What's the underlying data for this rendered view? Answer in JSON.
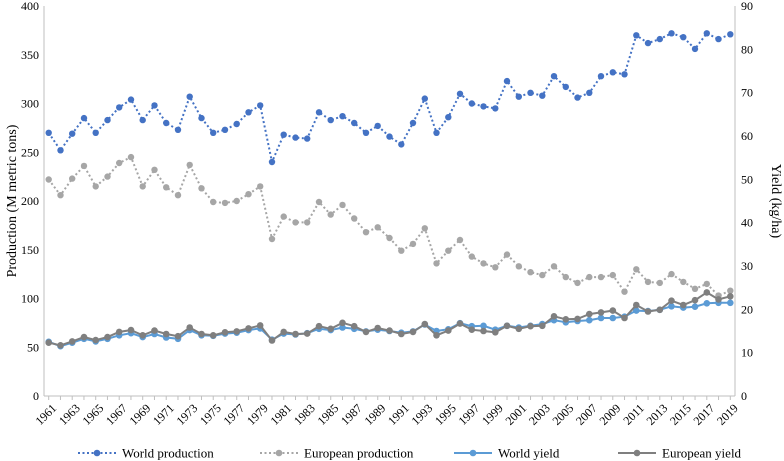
{
  "chart_data": {
    "type": "line",
    "title": "",
    "ylabel_left": "Production (M metric tons)",
    "ylabel_right": "Yield (kg/ha)",
    "ylim_left": [
      0,
      400
    ],
    "ylim_right": [
      0,
      90
    ],
    "yticks_left": [
      0,
      50,
      100,
      150,
      200,
      250,
      300,
      350,
      400
    ],
    "yticks_right": [
      0,
      10,
      20,
      30,
      40,
      50,
      60,
      70,
      80,
      90
    ],
    "x": [
      1961,
      1962,
      1963,
      1964,
      1965,
      1966,
      1967,
      1968,
      1969,
      1970,
      1971,
      1972,
      1973,
      1974,
      1975,
      1976,
      1977,
      1978,
      1979,
      1980,
      1981,
      1982,
      1983,
      1984,
      1985,
      1986,
      1987,
      1988,
      1989,
      1990,
      1991,
      1992,
      1993,
      1994,
      1995,
      1996,
      1997,
      1998,
      1999,
      2000,
      2001,
      2002,
      2003,
      2004,
      2005,
      2006,
      2007,
      2008,
      2009,
      2010,
      2011,
      2012,
      2013,
      2014,
      2015,
      2016,
      2017,
      2018,
      2019
    ],
    "xtick_labels": [
      "1961",
      "1963",
      "1965",
      "1967",
      "1969",
      "1971",
      "1973",
      "1975",
      "1977",
      "1979",
      "1981",
      "1983",
      "1985",
      "1987",
      "1989",
      "1991",
      "1993",
      "1995",
      "1997",
      "1999",
      "2001",
      "2003",
      "2005",
      "2007",
      "2009",
      "2011",
      "2013",
      "2015",
      "2017",
      "2019"
    ],
    "grid": false,
    "legend_position": "bottom",
    "series": [
      {
        "name": "World production",
        "axis": "left",
        "color": "#4472c4",
        "style": "dotted",
        "values": [
          270,
          252,
          269,
          285,
          270,
          283,
          296,
          304,
          283,
          298,
          280,
          273,
          307,
          285,
          270,
          273,
          279,
          291,
          298,
          240,
          268,
          265,
          264,
          291,
          283,
          287,
          280,
          270,
          277,
          266,
          258,
          280,
          305,
          270,
          286,
          310,
          300,
          297,
          295,
          323,
          307,
          311,
          308,
          328,
          317,
          306,
          311,
          328,
          332,
          330,
          370,
          362,
          366,
          372,
          368,
          356,
          372,
          366,
          371
        ]
      },
      {
        "name": "European production",
        "axis": "left",
        "color": "#a6a6a6",
        "style": "dotted",
        "values": [
          222,
          206,
          223,
          236,
          215,
          225,
          239,
          245,
          215,
          232,
          214,
          206,
          237,
          213,
          199,
          198,
          200,
          207,
          215,
          161,
          184,
          178,
          178,
          199,
          186,
          196,
          182,
          168,
          173,
          162,
          149,
          156,
          172,
          136,
          149,
          160,
          143,
          136,
          132,
          145,
          133,
          127,
          124,
          133,
          122,
          116,
          122,
          122,
          124,
          107,
          130,
          117,
          116,
          125,
          117,
          110,
          115,
          103,
          108
        ]
      },
      {
        "name": "World yield",
        "axis": "right",
        "color": "#5b9bd5",
        "style": "solid",
        "values": [
          12.5,
          11.5,
          12.3,
          13.2,
          12.6,
          13.2,
          14.0,
          14.5,
          13.6,
          14.3,
          13.5,
          13.2,
          15.2,
          14.0,
          13.9,
          14.4,
          14.6,
          15.2,
          15.6,
          13.0,
          14.4,
          14.2,
          14.5,
          15.5,
          15.2,
          15.8,
          15.5,
          14.9,
          15.3,
          15.0,
          14.6,
          14.9,
          16.5,
          15.0,
          15.4,
          16.8,
          16.1,
          16.2,
          15.3,
          16.2,
          15.8,
          16.2,
          16.6,
          17.5,
          17.0,
          17.3,
          17.5,
          18.0,
          18.0,
          18.3,
          19.7,
          19.6,
          19.9,
          20.7,
          20.4,
          20.6,
          21.4,
          21.5,
          21.5
        ]
      },
      {
        "name": "European yield",
        "axis": "right",
        "color": "#7f7f7f",
        "style": "solid",
        "values": [
          12.3,
          11.7,
          12.6,
          13.6,
          12.9,
          13.6,
          14.8,
          15.2,
          14.0,
          15.1,
          14.3,
          13.8,
          15.8,
          14.3,
          14.0,
          14.7,
          14.9,
          15.6,
          16.3,
          12.8,
          14.8,
          14.3,
          14.4,
          16.1,
          15.5,
          16.9,
          16.1,
          14.8,
          15.7,
          15.1,
          14.3,
          14.8,
          16.6,
          14.0,
          15.1,
          16.7,
          15.3,
          15.0,
          14.7,
          16.2,
          15.5,
          16.1,
          16.2,
          18.4,
          17.7,
          17.8,
          18.9,
          19.3,
          19.7,
          18.0,
          21.0,
          19.5,
          19.9,
          22.0,
          21.0,
          22.1,
          23.9,
          22.3,
          23.0
        ]
      }
    ]
  }
}
